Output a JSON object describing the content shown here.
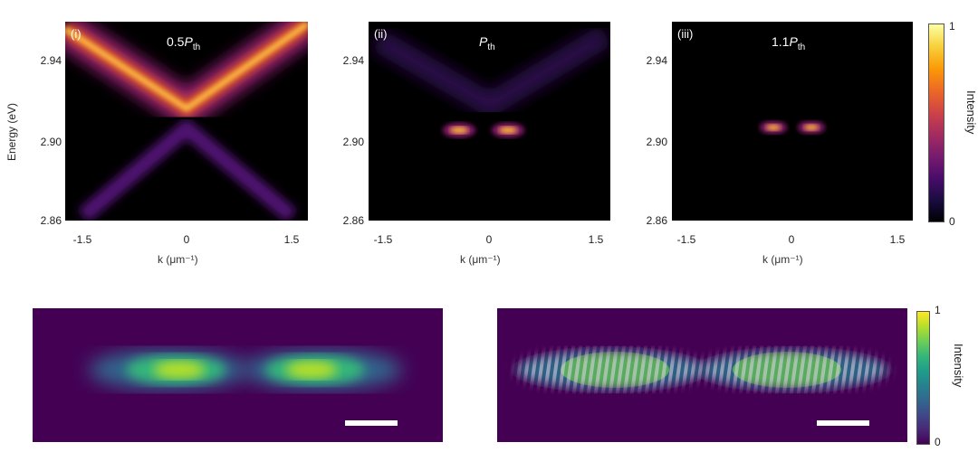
{
  "top_row": {
    "y_axis_title": "Energy (eV)",
    "y_ticks": [
      "2.94",
      "2.90",
      "2.86"
    ],
    "x_ticks": [
      "-1.5",
      "0",
      "1.5"
    ],
    "x_axis_title": "k (μm⁻¹)",
    "panels": [
      {
        "label": "(i)",
        "power_prefix": "0.5",
        "power_symbol": "P",
        "power_sub": "th"
      },
      {
        "label": "(ii)",
        "power_prefix": "",
        "power_symbol": "P",
        "power_sub": "th"
      },
      {
        "label": "(iii)",
        "power_prefix": "1.1",
        "power_symbol": "P",
        "power_sub": "th"
      }
    ],
    "colorbar": {
      "max": "1",
      "min": "0",
      "title": "Intensity"
    }
  },
  "bottom_row": {
    "colorbar": {
      "max": "1",
      "min": "0",
      "title": "Intensity"
    }
  },
  "colors": {
    "inferno_dark": "#000004",
    "inferno_purple": "#5a1380",
    "inferno_orange": "#f08a1a",
    "inferno_yellow": "#fcffa4",
    "viridis_dark": "#440154",
    "viridis_teal": "#21918c",
    "viridis_yellow": "#fde725"
  }
}
